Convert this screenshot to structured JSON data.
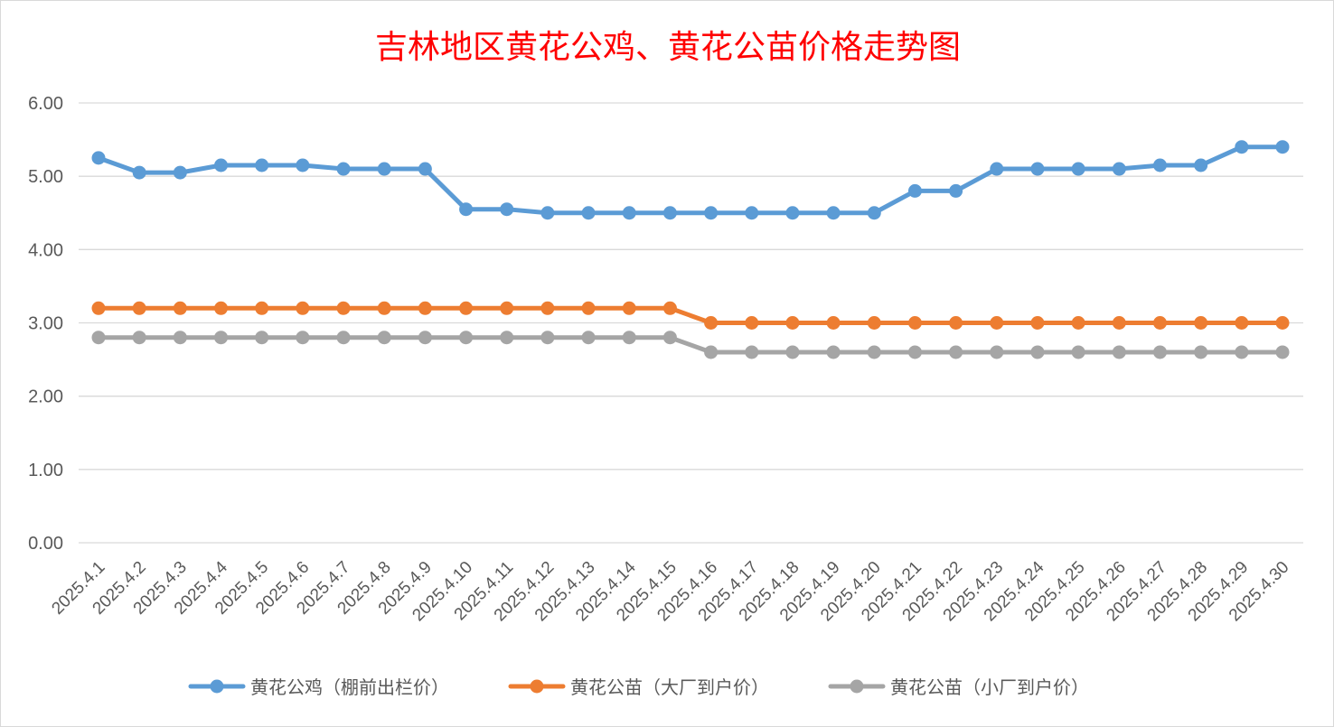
{
  "chart_data": {
    "type": "line",
    "title": "吉林地区黄花公鸡、黄花公苗价格走势图",
    "xlabel": "",
    "ylabel": "",
    "ylim": [
      0,
      6
    ],
    "yticks": [
      "0.00",
      "1.00",
      "2.00",
      "3.00",
      "4.00",
      "5.00",
      "6.00"
    ],
    "grid": true,
    "legend_position": "bottom",
    "categories": [
      "2025.4.1",
      "2025.4.2",
      "2025.4.3",
      "2025.4.4",
      "2025.4.5",
      "2025.4.6",
      "2025.4.7",
      "2025.4.8",
      "2025.4.9",
      "2025.4.10",
      "2025.4.11",
      "2025.4.12",
      "2025.4.13",
      "2025.4.14",
      "2025.4.15",
      "2025.4.16",
      "2025.4.17",
      "2025.4.18",
      "2025.4.19",
      "2025.4.20",
      "2025.4.21",
      "2025.4.22",
      "2025.4.23",
      "2025.4.24",
      "2025.4.25",
      "2025.4.26",
      "2025.4.27",
      "2025.4.28",
      "2025.4.29",
      "2025.4.30"
    ],
    "series": [
      {
        "name": "黄花公鸡（棚前出栏价）",
        "color": "#5b9bd5",
        "values": [
          5.25,
          5.05,
          5.05,
          5.15,
          5.15,
          5.15,
          5.1,
          5.1,
          5.1,
          4.55,
          4.55,
          4.5,
          4.5,
          4.5,
          4.5,
          4.5,
          4.5,
          4.5,
          4.5,
          4.5,
          4.8,
          4.8,
          5.1,
          5.1,
          5.1,
          5.1,
          5.15,
          5.15,
          5.4,
          5.4
        ]
      },
      {
        "name": "黄花公苗（大厂到户价）",
        "color": "#ed7d31",
        "values": [
          3.2,
          3.2,
          3.2,
          3.2,
          3.2,
          3.2,
          3.2,
          3.2,
          3.2,
          3.2,
          3.2,
          3.2,
          3.2,
          3.2,
          3.2,
          3.0,
          3.0,
          3.0,
          3.0,
          3.0,
          3.0,
          3.0,
          3.0,
          3.0,
          3.0,
          3.0,
          3.0,
          3.0,
          3.0,
          3.0
        ]
      },
      {
        "name": "黄花公苗（小厂到户价）",
        "color": "#a5a5a5",
        "values": [
          2.8,
          2.8,
          2.8,
          2.8,
          2.8,
          2.8,
          2.8,
          2.8,
          2.8,
          2.8,
          2.8,
          2.8,
          2.8,
          2.8,
          2.8,
          2.6,
          2.6,
          2.6,
          2.6,
          2.6,
          2.6,
          2.6,
          2.6,
          2.6,
          2.6,
          2.6,
          2.6,
          2.6,
          2.6,
          2.6
        ]
      }
    ]
  }
}
